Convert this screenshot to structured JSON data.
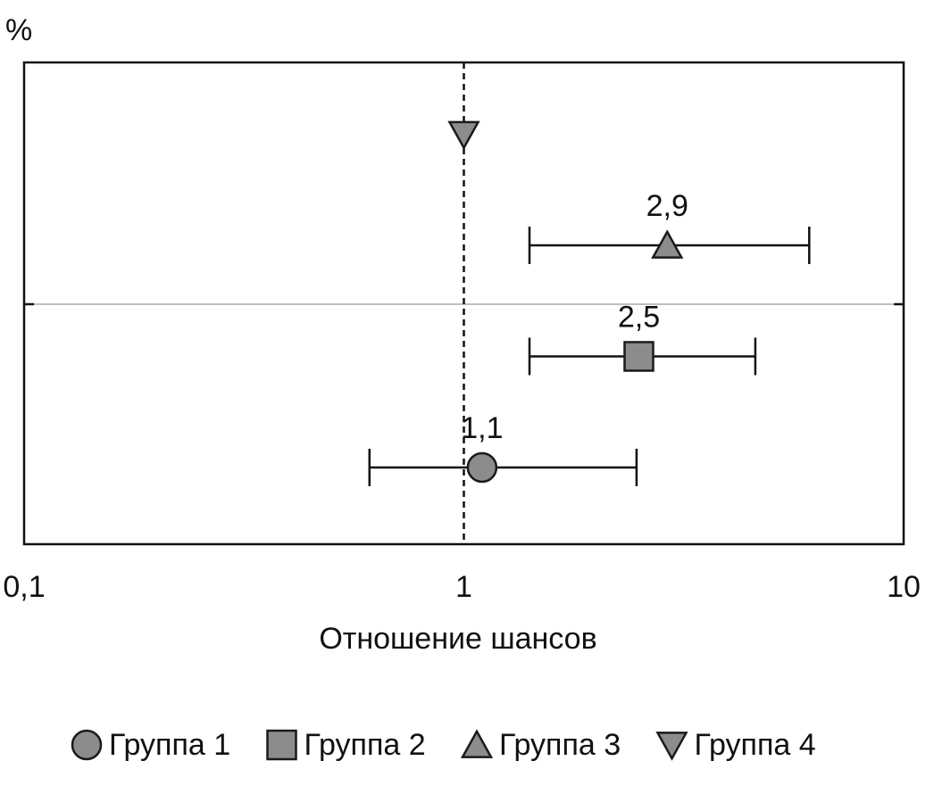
{
  "chart_data": {
    "type": "forest",
    "ylabel": "%",
    "xlabel": "Отношение шансов",
    "xscale": "log",
    "xlim": [
      0.1,
      10
    ],
    "xticks": [
      {
        "value": 0.1,
        "label": "0,1"
      },
      1,
      10
    ],
    "reference_line": 1,
    "series": [
      {
        "name": "Группа 1",
        "marker": "circle",
        "color": "#8c8c8d",
        "values": [
          1.1
        ],
        "lower": [
          0.61
        ],
        "upper": [
          2.47
        ],
        "value_labels": [
          "1,1"
        ]
      },
      {
        "name": "Группа 2",
        "marker": "square",
        "color": "#8c8c8d",
        "values": [
          2.5
        ],
        "lower": [
          1.41
        ],
        "upper": [
          4.6
        ],
        "value_labels": [
          "2,5"
        ]
      },
      {
        "name": "Группа 3",
        "marker": "triangle",
        "color": "#8c8c8d",
        "values": [
          2.9
        ],
        "lower": [
          1.41
        ],
        "upper": [
          6.1
        ],
        "value_labels": [
          "2,9"
        ]
      },
      {
        "name": "Группа 4",
        "marker": "triangle-down",
        "color": "#8c8c8d",
        "values": [
          1
        ],
        "lower": [
          null
        ],
        "upper": [
          null
        ],
        "value_labels": [
          null
        ]
      }
    ],
    "legend": "bottom"
  }
}
